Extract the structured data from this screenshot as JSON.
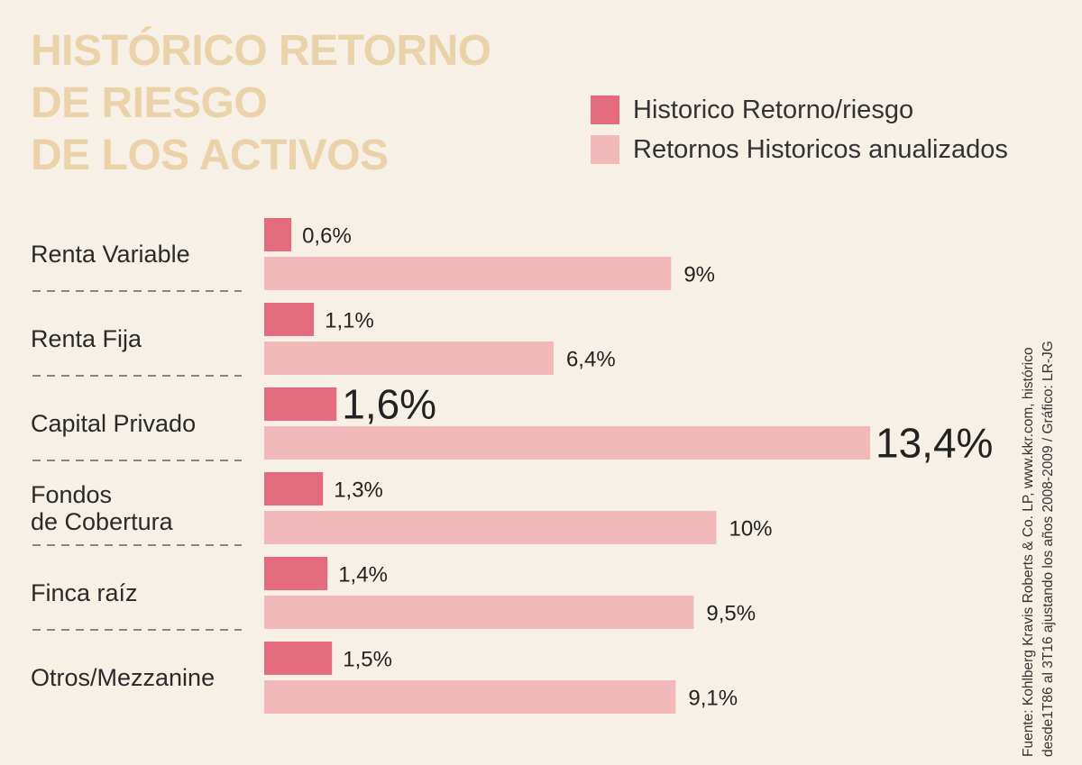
{
  "title": {
    "lines": [
      "HISTÓRICO RETORNO",
      "DE RIESGO",
      "DE LOS ACTIVOS"
    ]
  },
  "legend": [
    {
      "label": "Historico Retorno/riesgo",
      "color": "#e46b7d"
    },
    {
      "label": "Retornos Historicos anualizados",
      "color": "#f2b9bb"
    }
  ],
  "source": {
    "line1": "Fuente: Kohlberg Kravis Roberts & Co. LP, www.kkr.com, histórico",
    "line2": "desde1T86 al 3T16 ajustando los años 2008-2009 / Gráfico: LR-JG"
  },
  "chart_data": {
    "type": "bar",
    "orientation": "horizontal",
    "title": "HISTÓRICO RETORNO DE RIESGO DE LOS ACTIVOS",
    "categories": [
      [
        "Renta Variable"
      ],
      [
        "Renta Fija"
      ],
      [
        "Capital Privado"
      ],
      [
        "Fondos",
        "de Cobertura"
      ],
      [
        "Finca raíz"
      ],
      [
        "Otros/Mezzanine"
      ]
    ],
    "series": [
      {
        "name": "Historico Retorno/riesgo",
        "color": "#e46b7d",
        "values": [
          0.6,
          1.1,
          1.6,
          1.3,
          1.4,
          1.5
        ],
        "labels": [
          "0,6%",
          "1,1%",
          "1,6%",
          "1,3%",
          "1,4%",
          "1,5%"
        ]
      },
      {
        "name": "Retornos Historicos anualizados",
        "color": "#f2b9bb",
        "values": [
          9,
          6.4,
          13.4,
          10,
          9.5,
          9.1
        ],
        "labels": [
          "9%",
          "6,4%",
          "13,4%",
          "10%",
          "9,5%",
          "9,1%"
        ]
      }
    ],
    "highlight_index": 2,
    "xlim": [
      0,
      13.4
    ],
    "grid": false,
    "legend_position": "top-right"
  }
}
